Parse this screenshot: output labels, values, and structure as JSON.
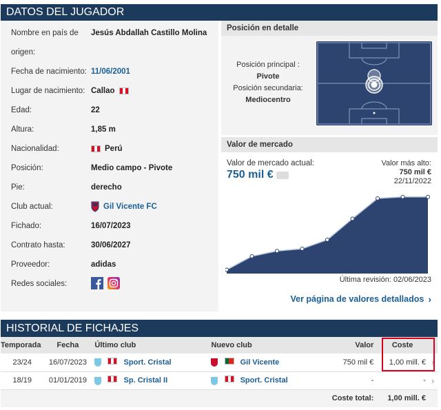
{
  "player_section": {
    "title": "DATOS DEL JUGADOR"
  },
  "fields": [
    {
      "label": "Nombre en país de",
      "label2": "origen:",
      "value": "Jesús Abdallah Castillo Molina"
    },
    {
      "label": "Fecha de nacimiento:",
      "value": "11/06/2001"
    },
    {
      "label": "Lugar de nacimiento:",
      "value": "Callao"
    },
    {
      "label": "Edad:",
      "value": "22"
    },
    {
      "label": "Altura:",
      "value": "1,85 m"
    },
    {
      "label": "Nacionalidad:",
      "value": "Perú"
    },
    {
      "label": "Posición:",
      "value": "Medio campo - Pivote"
    },
    {
      "label": "Pie:",
      "value": "derecho"
    },
    {
      "label": "Club actual:",
      "value": "Gil Vicente FC"
    },
    {
      "label": "Fichado:",
      "value": "16/07/2023"
    },
    {
      "label": "Contrato hasta:",
      "value": "30/06/2027"
    },
    {
      "label": "Proveedor:",
      "value": "adidas"
    },
    {
      "label": "Redes sociales:",
      "value": ""
    }
  ],
  "position": {
    "title": "Posición en detalle",
    "main_label": "Posición principal :",
    "main_value": "Pivote",
    "secondary_label": "Posición secundaria:",
    "secondary_value": "Mediocentro"
  },
  "market_value": {
    "title": "Valor de mercado",
    "current_label": "Valor de mercado actual:",
    "current_value": "750 mil €",
    "max_label": "Valor más alto:",
    "max_value": "750 mil €",
    "max_date": "22/11/2022",
    "last_revision": "Última revisión: 02/06/2023",
    "details_link": "Ver página de valores detallados"
  },
  "chart_data": {
    "type": "area",
    "x": [
      0,
      1,
      2,
      3,
      4,
      5,
      6,
      7,
      8
    ],
    "values": [
      0.05,
      0.23,
      0.3,
      0.33,
      0.45,
      0.73,
      1.0,
      1.02,
      1.02
    ],
    "ylim": [
      0,
      1.1
    ]
  },
  "transfers": {
    "title": "HISTORIAL DE FICHAJES",
    "headers": {
      "season": "Temporada",
      "date": "Fecha",
      "last_club": "Último club",
      "new_club": "Nuevo club",
      "value": "Valor",
      "cost": "Coste"
    },
    "rows": [
      {
        "season": "23/24",
        "date": "16/07/2023",
        "from": "Sport. Cristal",
        "to": "Gil Vicente",
        "value": "750 mil €",
        "cost": "1,00 mill. €"
      },
      {
        "season": "18/19",
        "date": "01/01/2019",
        "from": "Sp. Cristal II",
        "to": "Sport. Cristal",
        "value": "-",
        "cost": "-"
      }
    ],
    "total_label": "Coste total:",
    "total_value": "1,00 mill. €"
  },
  "colors": {
    "header_bg": "#1b3a5c",
    "link": "#1a5e96",
    "highlight": "#d9001b"
  }
}
